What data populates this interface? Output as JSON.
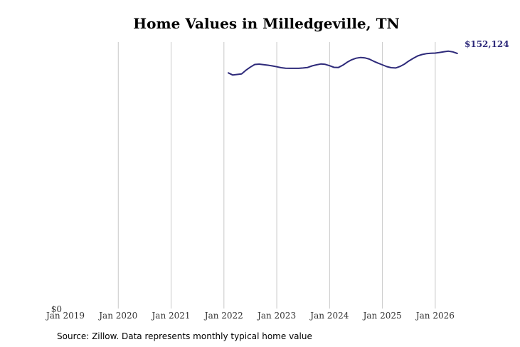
{
  "chart_data": {
    "type": "line",
    "title": "Home Values in Milledgeville, TN",
    "xlabel": "",
    "ylabel": "",
    "x_ticks": [
      "Jan 2019",
      "Jan 2020",
      "Jan 2021",
      "Jan 2022",
      "Jan 2023",
      "Jan 2024",
      "Jan 2025",
      "Jan 2026"
    ],
    "x_range": [
      "2019-01",
      "2026-07"
    ],
    "y_tick_label": "$0",
    "ylim": [
      0,
      152124
    ],
    "grid": "vertical",
    "end_label": "$152,124",
    "line_color": "#2e2a7a",
    "series": [
      {
        "x": [
          "2022-02",
          "2022-03",
          "2022-04",
          "2022-05",
          "2022-06",
          "2022-07",
          "2022-08",
          "2022-09",
          "2022-10",
          "2022-11",
          "2022-12",
          "2023-01",
          "2023-02",
          "2023-03",
          "2023-04",
          "2023-05",
          "2023-06",
          "2023-07",
          "2023-08",
          "2023-09",
          "2023-10",
          "2023-11",
          "2023-12",
          "2024-01",
          "2024-02",
          "2024-03",
          "2024-04",
          "2024-05",
          "2024-06",
          "2024-07",
          "2024-08",
          "2024-09",
          "2024-10",
          "2024-11",
          "2024-12",
          "2025-01",
          "2025-02",
          "2025-03",
          "2025-04",
          "2025-05",
          "2025-06",
          "2025-07",
          "2025-08",
          "2025-09",
          "2025-10",
          "2025-11",
          "2025-12",
          "2026-01",
          "2026-02",
          "2026-03",
          "2026-04",
          "2026-05",
          "2026-06"
        ],
        "values": [
          134500,
          133300,
          133600,
          133900,
          136000,
          137800,
          139300,
          139500,
          139200,
          138900,
          138500,
          138000,
          137500,
          137200,
          137100,
          137100,
          137100,
          137300,
          137600,
          138500,
          139100,
          139600,
          139400,
          138600,
          137700,
          137600,
          138900,
          140600,
          142000,
          142900,
          143300,
          143100,
          142400,
          141200,
          140100,
          139100,
          138100,
          137500,
          137300,
          138200,
          139500,
          141300,
          142800,
          144200,
          145000,
          145500,
          145700,
          145800,
          146200,
          146600,
          146900,
          146500,
          145600
        ]
      }
    ]
  },
  "source": "Source: Zillow. Data represents monthly typical home value"
}
